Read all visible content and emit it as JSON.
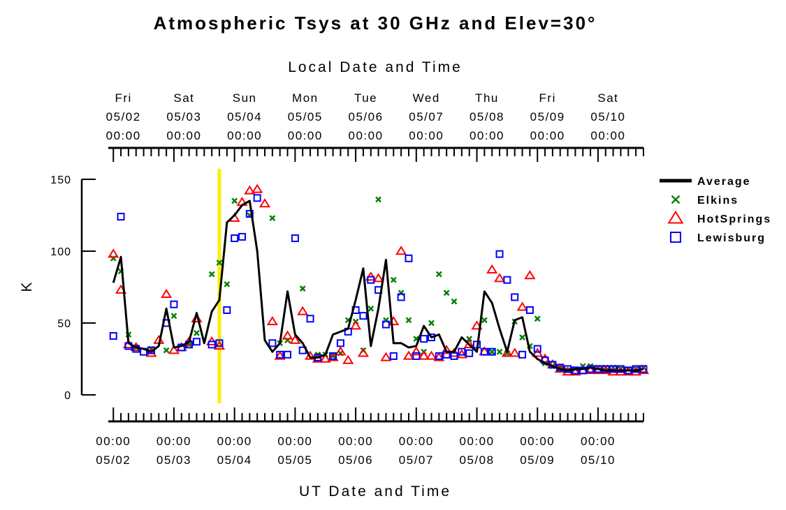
{
  "chart_data": {
    "type": "scatter",
    "title": "Atmospheric Tsys at 30 GHz and Elev=30°",
    "top_axis_title": "Local Date and Time",
    "bottom_axis_title": "UT Date and Time",
    "ylabel": "K",
    "ylim": [
      0,
      150
    ],
    "yticks": [
      0,
      50,
      100,
      150
    ],
    "xlim": [
      "2008-05-01T22:00",
      "2008-05-10T18:00"
    ],
    "x_unit": "UT date-time",
    "local_utc_offset_hours": -4,
    "top_ticks": [
      {
        "day": "Fri",
        "date": "05/02",
        "time": "00:00"
      },
      {
        "day": "Sat",
        "date": "05/03",
        "time": "00:00"
      },
      {
        "day": "Sun",
        "date": "05/04",
        "time": "00:00"
      },
      {
        "day": "Mon",
        "date": "05/05",
        "time": "00:00"
      },
      {
        "day": "Tue",
        "date": "05/06",
        "time": "00:00"
      },
      {
        "day": "Wed",
        "date": "05/07",
        "time": "00:00"
      },
      {
        "day": "Thu",
        "date": "05/08",
        "time": "00:00"
      },
      {
        "day": "Fri",
        "date": "05/09",
        "time": "00:00"
      },
      {
        "day": "Sat",
        "date": "05/10",
        "time": "00:00"
      }
    ],
    "bottom_ticks": [
      {
        "time": "00:00",
        "date": "05/02"
      },
      {
        "time": "00:00",
        "date": "05/03"
      },
      {
        "time": "00:00",
        "date": "05/04"
      },
      {
        "time": "00:00",
        "date": "05/05"
      },
      {
        "time": "00:00",
        "date": "05/06"
      },
      {
        "time": "00:00",
        "date": "05/07"
      },
      {
        "time": "00:00",
        "date": "05/08"
      },
      {
        "time": "00:00",
        "date": "05/09"
      },
      {
        "time": "00:00",
        "date": "05/10"
      }
    ],
    "now_marker": {
      "x": "2008-05-03T18:00",
      "color": "#ffee00"
    },
    "legend_position": "right",
    "series": [
      {
        "name": "Average",
        "marker": "line",
        "color": "#000000",
        "x": [
          "2008-05-02T00:00",
          "2008-05-02T03:00",
          "2008-05-02T06:00",
          "2008-05-02T09:00",
          "2008-05-02T12:00",
          "2008-05-02T15:00",
          "2008-05-02T18:00",
          "2008-05-02T21:00",
          "2008-05-03T00:00",
          "2008-05-03T03:00",
          "2008-05-03T06:00",
          "2008-05-03T09:00",
          "2008-05-03T12:00",
          "2008-05-03T15:00",
          "2008-05-03T18:00",
          "2008-05-03T21:00",
          "2008-05-04T00:00",
          "2008-05-04T03:00",
          "2008-05-04T06:00",
          "2008-05-04T09:00",
          "2008-05-04T12:00",
          "2008-05-04T15:00",
          "2008-05-04T18:00",
          "2008-05-04T21:00",
          "2008-05-05T00:00",
          "2008-05-05T03:00",
          "2008-05-05T06:00",
          "2008-05-05T09:00",
          "2008-05-05T12:00",
          "2008-05-05T15:00",
          "2008-05-05T18:00",
          "2008-05-05T21:00",
          "2008-05-06T00:00",
          "2008-05-06T03:00",
          "2008-05-06T06:00",
          "2008-05-06T09:00",
          "2008-05-06T12:00",
          "2008-05-06T15:00",
          "2008-05-06T18:00",
          "2008-05-06T21:00",
          "2008-05-07T00:00",
          "2008-05-07T03:00",
          "2008-05-07T06:00",
          "2008-05-07T09:00",
          "2008-05-07T12:00",
          "2008-05-07T15:00",
          "2008-05-07T18:00",
          "2008-05-07T21:00",
          "2008-05-08T00:00",
          "2008-05-08T03:00",
          "2008-05-08T06:00",
          "2008-05-08T09:00",
          "2008-05-08T12:00",
          "2008-05-08T15:00",
          "2008-05-08T18:00",
          "2008-05-08T21:00",
          "2008-05-09T00:00",
          "2008-05-09T03:00",
          "2008-05-09T06:00",
          "2008-05-09T09:00",
          "2008-05-09T12:00",
          "2008-05-09T15:00",
          "2008-05-09T18:00",
          "2008-05-09T21:00",
          "2008-05-10T00:00",
          "2008-05-10T03:00",
          "2008-05-10T06:00",
          "2008-05-10T09:00",
          "2008-05-10T12:00",
          "2008-05-10T15:00",
          "2008-05-10T18:00"
        ],
        "values": [
          78,
          96,
          36,
          33,
          32,
          30,
          34,
          60,
          33,
          34,
          37,
          57,
          36,
          58,
          66,
          120,
          125,
          132,
          135,
          100,
          38,
          30,
          36,
          72,
          42,
          36,
          26,
          26,
          28,
          42,
          44,
          46,
          66,
          88,
          34,
          60,
          94,
          36,
          36,
          33,
          34,
          48,
          40,
          42,
          30,
          30,
          40,
          35,
          30,
          72,
          64,
          46,
          30,
          52,
          54,
          30,
          25,
          22,
          20,
          18,
          17,
          18,
          18,
          19,
          18,
          17,
          17,
          17,
          17,
          17,
          18
        ]
      },
      {
        "name": "Elkins",
        "marker": "x",
        "color": "#008000",
        "x": [
          "2008-05-02T00:00",
          "2008-05-02T03:00",
          "2008-05-02T06:00",
          "2008-05-02T09:00",
          "2008-05-02T15:00",
          "2008-05-02T21:00",
          "2008-05-03T00:00",
          "2008-05-03T06:00",
          "2008-05-03T09:00",
          "2008-05-03T15:00",
          "2008-05-03T18:00",
          "2008-05-03T21:00",
          "2008-05-04T00:00",
          "2008-05-04T06:00",
          "2008-05-04T15:00",
          "2008-05-04T18:00",
          "2008-05-04T21:00",
          "2008-05-05T03:00",
          "2008-05-05T09:00",
          "2008-05-05T12:00",
          "2008-05-05T15:00",
          "2008-05-05T18:00",
          "2008-05-05T21:00",
          "2008-05-06T00:00",
          "2008-05-06T03:00",
          "2008-05-06T06:00",
          "2008-05-06T09:00",
          "2008-05-06T12:00",
          "2008-05-06T15:00",
          "2008-05-06T18:00",
          "2008-05-06T21:00",
          "2008-05-07T00:00",
          "2008-05-07T03:00",
          "2008-05-07T06:00",
          "2008-05-07T09:00",
          "2008-05-07T12:00",
          "2008-05-07T15:00",
          "2008-05-07T21:00",
          "2008-05-08T03:00",
          "2008-05-08T06:00",
          "2008-05-08T09:00",
          "2008-05-08T12:00",
          "2008-05-08T15:00",
          "2008-05-08T18:00",
          "2008-05-08T21:00",
          "2008-05-09T00:00",
          "2008-05-09T03:00",
          "2008-05-09T06:00",
          "2008-05-09T09:00",
          "2008-05-09T12:00",
          "2008-05-09T15:00",
          "2008-05-09T18:00",
          "2008-05-09T21:00",
          "2008-05-10T00:00",
          "2008-05-10T03:00",
          "2008-05-10T06:00",
          "2008-05-10T09:00",
          "2008-05-10T12:00",
          "2008-05-10T15:00",
          "2008-05-10T18:00"
        ],
        "values": [
          95,
          86,
          42,
          33,
          32,
          31,
          55,
          35,
          43,
          84,
          92,
          77,
          135,
          125,
          123,
          36,
          38,
          74,
          28,
          28,
          27,
          29,
          52,
          51,
          31,
          60,
          136,
          52,
          80,
          71,
          52,
          39,
          30,
          50,
          84,
          71,
          65,
          39,
          52,
          30,
          30,
          29,
          51,
          40,
          34,
          53,
          22,
          20,
          19,
          17,
          18,
          20,
          20,
          19,
          19,
          19,
          18,
          18,
          18,
          19
        ]
      },
      {
        "name": "HotSprings",
        "marker": "triangle",
        "color": "#ff0000",
        "x": [
          "2008-05-02T00:00",
          "2008-05-02T03:00",
          "2008-05-02T06:00",
          "2008-05-02T09:00",
          "2008-05-02T15:00",
          "2008-05-02T18:00",
          "2008-05-02T21:00",
          "2008-05-03T00:00",
          "2008-05-03T03:00",
          "2008-05-03T06:00",
          "2008-05-03T09:00",
          "2008-05-03T15:00",
          "2008-05-03T18:00",
          "2008-05-04T00:00",
          "2008-05-04T03:00",
          "2008-05-04T06:00",
          "2008-05-04T09:00",
          "2008-05-04T12:00",
          "2008-05-04T15:00",
          "2008-05-04T18:00",
          "2008-05-04T21:00",
          "2008-05-05T00:00",
          "2008-05-05T03:00",
          "2008-05-05T06:00",
          "2008-05-05T09:00",
          "2008-05-05T12:00",
          "2008-05-05T15:00",
          "2008-05-05T18:00",
          "2008-05-05T21:00",
          "2008-05-06T00:00",
          "2008-05-06T03:00",
          "2008-05-06T06:00",
          "2008-05-06T09:00",
          "2008-05-06T12:00",
          "2008-05-06T15:00",
          "2008-05-06T18:00",
          "2008-05-06T21:00",
          "2008-05-07T00:00",
          "2008-05-07T03:00",
          "2008-05-07T06:00",
          "2008-05-07T09:00",
          "2008-05-07T12:00",
          "2008-05-07T15:00",
          "2008-05-07T18:00",
          "2008-05-07T21:00",
          "2008-05-08T00:00",
          "2008-05-08T03:00",
          "2008-05-08T06:00",
          "2008-05-08T09:00",
          "2008-05-08T12:00",
          "2008-05-08T15:00",
          "2008-05-08T18:00",
          "2008-05-08T21:00",
          "2008-05-09T00:00",
          "2008-05-09T03:00",
          "2008-05-09T06:00",
          "2008-05-09T09:00",
          "2008-05-09T12:00",
          "2008-05-09T15:00",
          "2008-05-09T18:00",
          "2008-05-09T21:00",
          "2008-05-10T00:00",
          "2008-05-10T03:00",
          "2008-05-10T06:00",
          "2008-05-10T09:00",
          "2008-05-10T12:00",
          "2008-05-10T15:00",
          "2008-05-10T18:00"
        ],
        "values": [
          98,
          73,
          35,
          33,
          29,
          38,
          70,
          31,
          33,
          37,
          53,
          37,
          34,
          123,
          134,
          142,
          143,
          133,
          51,
          27,
          41,
          38,
          58,
          27,
          25,
          25,
          26,
          30,
          24,
          48,
          29,
          82,
          81,
          26,
          51,
          100,
          27,
          30,
          27,
          27,
          26,
          31,
          29,
          28,
          35,
          48,
          30,
          87,
          81,
          29,
          29,
          61,
          83,
          29,
          25,
          21,
          18,
          16,
          16,
          17,
          17,
          17,
          17,
          16,
          16,
          16,
          16,
          17
        ]
      },
      {
        "name": "Lewisburg",
        "marker": "square",
        "color": "#0000ff",
        "x": [
          "2008-05-02T00:00",
          "2008-05-02T03:00",
          "2008-05-02T06:00",
          "2008-05-02T09:00",
          "2008-05-02T12:00",
          "2008-05-02T15:00",
          "2008-05-02T21:00",
          "2008-05-03T00:00",
          "2008-05-03T03:00",
          "2008-05-03T06:00",
          "2008-05-03T09:00",
          "2008-05-03T15:00",
          "2008-05-03T18:00",
          "2008-05-03T21:00",
          "2008-05-04T00:00",
          "2008-05-04T03:00",
          "2008-05-04T06:00",
          "2008-05-04T09:00",
          "2008-05-04T15:00",
          "2008-05-04T18:00",
          "2008-05-04T21:00",
          "2008-05-05T00:00",
          "2008-05-05T03:00",
          "2008-05-05T06:00",
          "2008-05-05T09:00",
          "2008-05-05T15:00",
          "2008-05-05T18:00",
          "2008-05-05T21:00",
          "2008-05-06T00:00",
          "2008-05-06T03:00",
          "2008-05-06T06:00",
          "2008-05-06T09:00",
          "2008-05-06T12:00",
          "2008-05-06T15:00",
          "2008-05-06T18:00",
          "2008-05-06T21:00",
          "2008-05-07T00:00",
          "2008-05-07T03:00",
          "2008-05-07T06:00",
          "2008-05-07T09:00",
          "2008-05-07T12:00",
          "2008-05-07T15:00",
          "2008-05-07T18:00",
          "2008-05-07T21:00",
          "2008-05-08T00:00",
          "2008-05-08T03:00",
          "2008-05-08T06:00",
          "2008-05-08T09:00",
          "2008-05-08T12:00",
          "2008-05-08T15:00",
          "2008-05-08T18:00",
          "2008-05-08T21:00",
          "2008-05-09T00:00",
          "2008-05-09T03:00",
          "2008-05-09T06:00",
          "2008-05-09T09:00",
          "2008-05-09T12:00",
          "2008-05-09T15:00",
          "2008-05-09T18:00",
          "2008-05-09T21:00",
          "2008-05-10T00:00",
          "2008-05-10T03:00",
          "2008-05-10T06:00",
          "2008-05-10T09:00",
          "2008-05-10T12:00",
          "2008-05-10T15:00",
          "2008-05-10T18:00"
        ],
        "values": [
          41,
          124,
          34,
          32,
          30,
          31,
          50,
          63,
          33,
          35,
          37,
          35,
          36,
          59,
          109,
          110,
          126,
          137,
          36,
          28,
          28,
          109,
          31,
          53,
          26,
          27,
          36,
          44,
          59,
          55,
          80,
          73,
          49,
          27,
          68,
          95,
          27,
          39,
          40,
          27,
          28,
          27,
          30,
          29,
          35,
          30,
          30,
          98,
          80,
          68,
          28,
          59,
          32,
          24,
          21,
          19,
          18,
          17,
          17,
          18,
          18,
          18,
          18,
          18,
          17,
          18,
          18
        ]
      }
    ]
  }
}
